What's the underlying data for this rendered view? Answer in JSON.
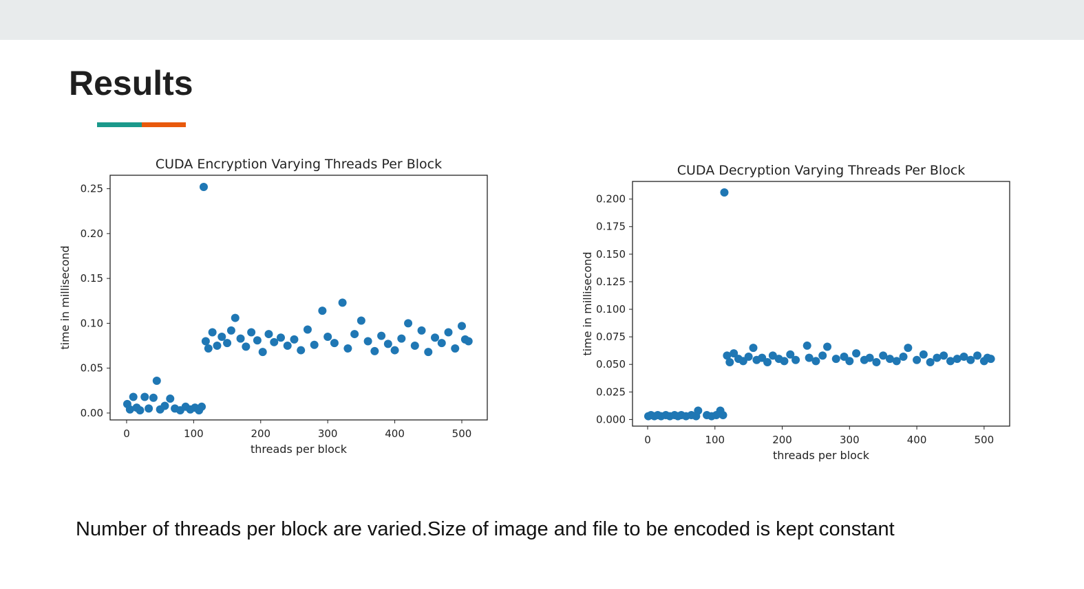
{
  "title": "Results",
  "caption": "Number of threads  per block are varied.Size of image and file to be encoded is kept constant",
  "chart_data": [
    {
      "type": "scatter",
      "title": "CUDA Encryption Varying Threads Per Block",
      "x_label": "threads per block",
      "y_label": "time in millisecond",
      "color": "#1f77b4",
      "x": [
        1,
        5,
        10,
        15,
        20,
        27,
        33,
        40,
        45,
        50,
        57,
        65,
        72,
        80,
        88,
        95,
        102,
        108,
        112,
        115,
        118,
        122,
        128,
        135,
        142,
        150,
        156,
        162,
        170,
        178,
        186,
        195,
        203,
        212,
        220,
        230,
        240,
        250,
        260,
        270,
        280,
        292,
        300,
        310,
        322,
        330,
        340,
        350,
        360,
        370,
        380,
        390,
        400,
        410,
        420,
        430,
        440,
        450,
        460,
        470,
        480,
        490,
        500,
        505,
        510
      ],
      "values": [
        0.01,
        0.004,
        0.018,
        0.006,
        0.003,
        0.018,
        0.005,
        0.017,
        0.036,
        0.004,
        0.008,
        0.016,
        0.005,
        0.003,
        0.007,
        0.004,
        0.006,
        0.003,
        0.007,
        0.252,
        0.08,
        0.072,
        0.09,
        0.075,
        0.085,
        0.078,
        0.092,
        0.106,
        0.083,
        0.074,
        0.09,
        0.081,
        0.068,
        0.088,
        0.079,
        0.084,
        0.075,
        0.082,
        0.07,
        0.093,
        0.076,
        0.114,
        0.085,
        0.078,
        0.123,
        0.072,
        0.088,
        0.103,
        0.08,
        0.069,
        0.086,
        0.077,
        0.07,
        0.083,
        0.1,
        0.075,
        0.092,
        0.068,
        0.084,
        0.078,
        0.09,
        0.072,
        0.097,
        0.082,
        0.08
      ],
      "xlim": [
        -24.6,
        538
      ],
      "xticks": [
        0,
        100,
        200,
        300,
        400,
        500
      ],
      "ylim": [
        -0.0077,
        0.265
      ],
      "yticks": [
        {
          "value": 0,
          "label": "0.00"
        },
        0.05,
        {
          "value": 0.1,
          "label": "0.10"
        },
        0.15,
        {
          "value": 0.2,
          "label": "0.20"
        },
        0.25
      ]
    },
    {
      "type": "scatter",
      "title": "CUDA Decryption Varying Threads Per Block",
      "x_label": "threads per block",
      "y_label": "time in millisecond",
      "color": "#1f77b4",
      "x": [
        1,
        5,
        10,
        15,
        20,
        27,
        33,
        40,
        45,
        50,
        57,
        65,
        72,
        75,
        88,
        95,
        102,
        108,
        112,
        114,
        118,
        122,
        128,
        135,
        142,
        150,
        157,
        162,
        170,
        178,
        186,
        195,
        203,
        212,
        220,
        237,
        240,
        250,
        260,
        267,
        280,
        292,
        300,
        310,
        322,
        330,
        340,
        350,
        360,
        370,
        380,
        387,
        400,
        410,
        420,
        430,
        440,
        450,
        460,
        470,
        480,
        490,
        500,
        505,
        510
      ],
      "values": [
        0.003,
        0.004,
        0.003,
        0.004,
        0.003,
        0.004,
        0.003,
        0.004,
        0.003,
        0.004,
        0.003,
        0.004,
        0.003,
        0.008,
        0.004,
        0.003,
        0.004,
        0.008,
        0.004,
        0.206,
        0.058,
        0.052,
        0.06,
        0.055,
        0.053,
        0.057,
        0.065,
        0.054,
        0.056,
        0.052,
        0.058,
        0.055,
        0.053,
        0.059,
        0.054,
        0.067,
        0.056,
        0.053,
        0.058,
        0.066,
        0.055,
        0.057,
        0.053,
        0.06,
        0.054,
        0.056,
        0.052,
        0.058,
        0.055,
        0.053,
        0.057,
        0.065,
        0.054,
        0.059,
        0.052,
        0.056,
        0.058,
        0.053,
        0.055,
        0.057,
        0.054,
        0.058,
        0.053,
        0.056,
        0.055
      ],
      "xlim": [
        -22.5,
        538
      ],
      "xticks": [
        0,
        100,
        200,
        300,
        400,
        500
      ],
      "ylim": [
        -0.006,
        0.216
      ],
      "yticks": [
        {
          "value": 0,
          "label": "0.000"
        },
        0.025,
        {
          "value": 0.05,
          "label": "0.050"
        },
        0.075,
        {
          "value": 0.1,
          "label": "0.100"
        },
        0.125,
        {
          "value": 0.15,
          "label": "0.150"
        },
        0.175,
        {
          "value": 0.2,
          "label": "0.200"
        }
      ]
    }
  ]
}
